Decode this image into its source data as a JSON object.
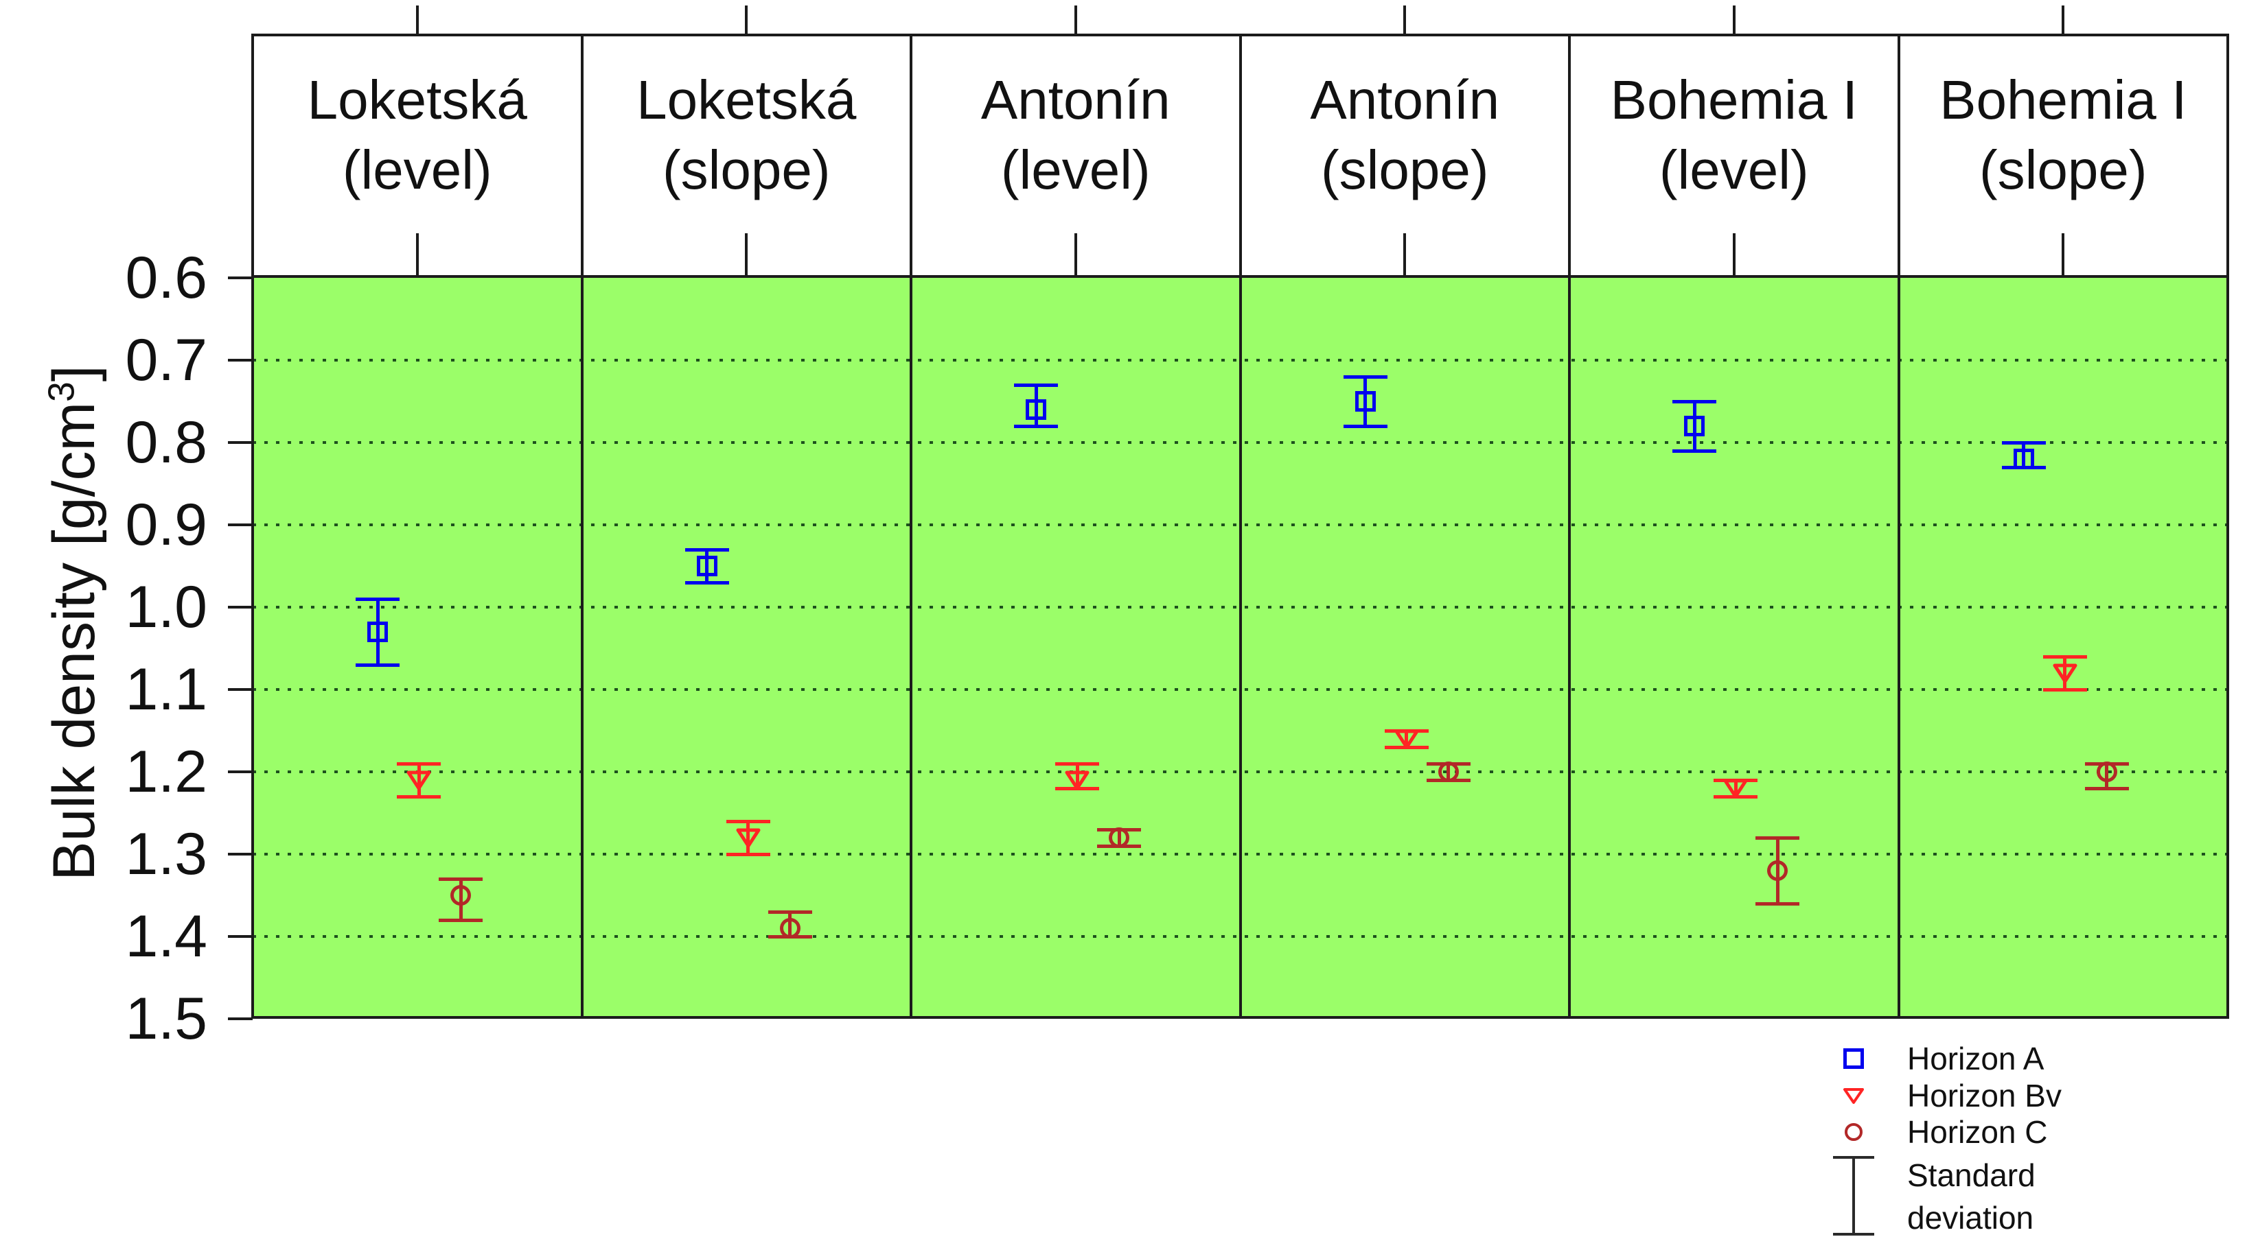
{
  "chart_data": {
    "type": "scatter",
    "title": "",
    "xlabel": "",
    "ylabel": "Bulk density [g/cm³]",
    "ylabel_parts": {
      "main": "Bulk density [g/cm",
      "sup": "3",
      "end": "]"
    },
    "axis_inverted": true,
    "ylim": [
      0.6,
      1.5
    ],
    "y_ticks": [
      0.6,
      0.7,
      0.8,
      0.9,
      1.0,
      1.1,
      1.2,
      1.3,
      1.4,
      1.5
    ],
    "grid_values": [
      0.7,
      0.8,
      0.9,
      1.0,
      1.1,
      1.2,
      1.3,
      1.4
    ],
    "grid_style": "dotted",
    "legend_position": "bottom-right",
    "series": [
      {
        "name": "Horizon A",
        "marker": "square",
        "color": "#0202ee",
        "x_fraction": 0.38
      },
      {
        "name": "Horizon Bv",
        "marker": "triangle-down",
        "color": "#ff2424",
        "x_fraction": 0.505
      },
      {
        "name": "Horizon C",
        "marker": "circle",
        "color": "#b22828",
        "x_fraction": 0.632
      }
    ],
    "panels": [
      {
        "site": "Loketská",
        "position": "(level)",
        "points": [
          {
            "series": "Horizon A",
            "mean": 1.03,
            "sd_low": 0.99,
            "sd_high": 1.07
          },
          {
            "series": "Horizon Bv",
            "mean": 1.21,
            "sd_low": 1.19,
            "sd_high": 1.23
          },
          {
            "series": "Horizon C",
            "mean": 1.35,
            "sd_low": 1.33,
            "sd_high": 1.38
          }
        ]
      },
      {
        "site": "Loketská",
        "position": "(slope)",
        "points": [
          {
            "series": "Horizon A",
            "mean": 0.95,
            "sd_low": 0.93,
            "sd_high": 0.97
          },
          {
            "series": "Horizon Bv",
            "mean": 1.28,
            "sd_low": 1.26,
            "sd_high": 1.3
          },
          {
            "series": "Horizon C",
            "mean": 1.39,
            "sd_low": 1.37,
            "sd_high": 1.4
          }
        ]
      },
      {
        "site": "Antonín",
        "position": "(level)",
        "points": [
          {
            "series": "Horizon A",
            "mean": 0.76,
            "sd_low": 0.73,
            "sd_high": 0.78
          },
          {
            "series": "Horizon Bv",
            "mean": 1.21,
            "sd_low": 1.19,
            "sd_high": 1.22
          },
          {
            "series": "Horizon C",
            "mean": 1.28,
            "sd_low": 1.27,
            "sd_high": 1.29
          }
        ]
      },
      {
        "site": "Antonín",
        "position": "(slope)",
        "points": [
          {
            "series": "Horizon A",
            "mean": 0.75,
            "sd_low": 0.72,
            "sd_high": 0.78
          },
          {
            "series": "Horizon Bv",
            "mean": 1.16,
            "sd_low": 1.15,
            "sd_high": 1.17
          },
          {
            "series": "Horizon C",
            "mean": 1.2,
            "sd_low": 1.19,
            "sd_high": 1.21
          }
        ]
      },
      {
        "site": "Bohemia I",
        "position": "(level)",
        "points": [
          {
            "series": "Horizon A",
            "mean": 0.78,
            "sd_low": 0.75,
            "sd_high": 0.81
          },
          {
            "series": "Horizon Bv",
            "mean": 1.22,
            "sd_low": 1.21,
            "sd_high": 1.23
          },
          {
            "series": "Horizon C",
            "mean": 1.32,
            "sd_low": 1.28,
            "sd_high": 1.36
          }
        ]
      },
      {
        "site": "Bohemia I",
        "position": "(slope)",
        "points": [
          {
            "series": "Horizon A",
            "mean": 0.82,
            "sd_low": 0.8,
            "sd_high": 0.83
          },
          {
            "series": "Horizon Bv",
            "mean": 1.08,
            "sd_low": 1.06,
            "sd_high": 1.1
          },
          {
            "series": "Horizon C",
            "mean": 1.2,
            "sd_low": 1.19,
            "sd_high": 1.22
          }
        ]
      }
    ]
  },
  "legend": {
    "items": [
      "Horizon A",
      "Horizon Bv",
      "Horizon C"
    ],
    "sd_line1": "Standard",
    "sd_line2": "deviation"
  },
  "colors": {
    "plot_background": "#9bfe69",
    "grid_dot": "#1d511d",
    "axis": "#1b1b1b",
    "horizon_a": "#0202ee",
    "horizon_bv": "#ff2424",
    "horizon_c": "#b22828"
  }
}
